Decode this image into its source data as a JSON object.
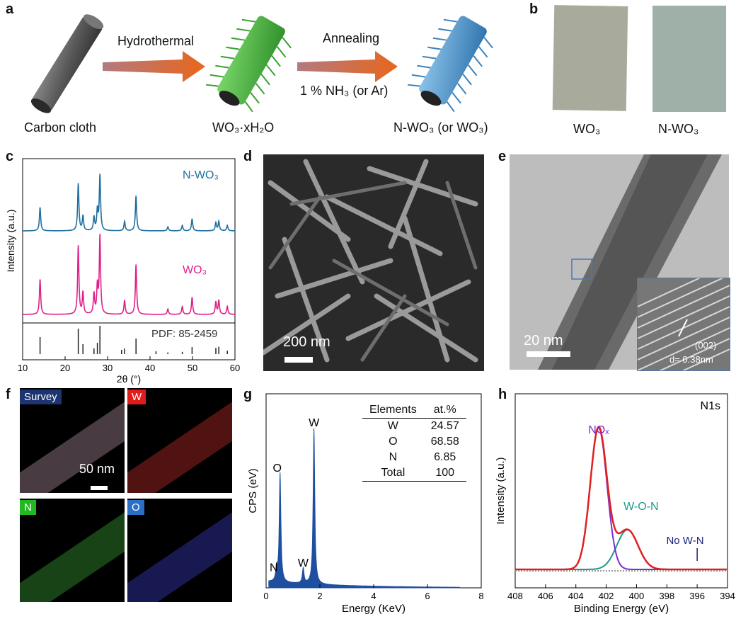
{
  "panels": {
    "a": "a",
    "b": "b",
    "c": "c",
    "d": "d",
    "e": "e",
    "f": "f",
    "g": "g",
    "h": "h"
  },
  "panel_a": {
    "step1_label": "Carbon cloth",
    "arrow1_label": "Hydrothermal",
    "step2_label": "WO₃·xH₂O",
    "arrow2_label": "Annealing",
    "arrow2_sub": "1 % NH₃ (or Ar)",
    "step3_label": "N-WO₃ (or WO₃)"
  },
  "panel_b": {
    "left_label": "WO₃",
    "right_label": "N-WO₃"
  },
  "panel_d": {
    "scale_bar": "200 nm"
  },
  "panel_e": {
    "scale_bar": "20 nm",
    "inset_plane": "(002)",
    "inset_d": "d= 0.38nm"
  },
  "panel_f": {
    "maps": [
      "Survey",
      "W",
      "N",
      "O"
    ],
    "scale_bar": "50 nm"
  },
  "chart_data": [
    {
      "panel": "c",
      "type": "line",
      "xlabel": "2θ (°)",
      "ylabel": "Intensity (a.u.)",
      "xlim": [
        10,
        60
      ],
      "xticks": [
        10,
        20,
        30,
        40,
        50,
        60
      ],
      "series": [
        {
          "name": "N-WO₃",
          "color": "#1f6f9f",
          "peaks": [
            [
              14.1,
              35
            ],
            [
              23.1,
              70
            ],
            [
              24.2,
              22
            ],
            [
              26.8,
              20
            ],
            [
              27.6,
              30
            ],
            [
              28.2,
              82
            ],
            [
              34.0,
              14
            ],
            [
              36.7,
              52
            ],
            [
              44.2,
              6
            ],
            [
              47.6,
              8
            ],
            [
              49.9,
              18
            ],
            [
              55.5,
              12
            ],
            [
              56.2,
              14
            ],
            [
              58.2,
              8
            ]
          ]
        },
        {
          "name": "WO₃",
          "color": "#e0218a",
          "peaks": [
            [
              14.1,
              45
            ],
            [
              23.1,
              88
            ],
            [
              24.2,
              28
            ],
            [
              26.8,
              26
            ],
            [
              27.6,
              35
            ],
            [
              28.2,
              100
            ],
            [
              34.0,
              18
            ],
            [
              36.7,
              64
            ],
            [
              44.2,
              7
            ],
            [
              47.6,
              10
            ],
            [
              49.9,
              22
            ],
            [
              55.5,
              16
            ],
            [
              56.2,
              18
            ],
            [
              58.2,
              10
            ]
          ]
        }
      ],
      "reference": {
        "name": "PDF: 85-2459",
        "lines": [
          [
            14.1,
            60
          ],
          [
            23.1,
            90
          ],
          [
            24.2,
            35
          ],
          [
            26.8,
            20
          ],
          [
            27.6,
            40
          ],
          [
            28.2,
            100
          ],
          [
            33.3,
            15
          ],
          [
            34.0,
            20
          ],
          [
            36.7,
            55
          ],
          [
            41.4,
            10
          ],
          [
            44.2,
            6
          ],
          [
            47.6,
            8
          ],
          [
            49.9,
            25
          ],
          [
            55.5,
            22
          ],
          [
            56.2,
            26
          ],
          [
            58.2,
            12
          ]
        ]
      }
    },
    {
      "panel": "g",
      "type": "area",
      "xlabel": "Energy (KeV)",
      "ylabel": "CPS (eV)",
      "xlim": [
        0,
        8
      ],
      "xticks": [
        0,
        2,
        4,
        6,
        8
      ],
      "color": "#1f4f9f",
      "peaks": [
        [
          0.39,
          8,
          "N"
        ],
        [
          0.52,
          70,
          "O"
        ],
        [
          1.38,
          10,
          "W"
        ],
        [
          1.78,
          100,
          "W"
        ]
      ],
      "table": {
        "headers": [
          "Elements",
          "at.%"
        ],
        "rows": [
          [
            "W",
            "24.57"
          ],
          [
            "O",
            "68.58"
          ],
          [
            "N",
            "6.85"
          ],
          [
            "Total",
            "100"
          ]
        ]
      }
    },
    {
      "panel": "h",
      "type": "line",
      "title": "N1s",
      "xlabel": "Binding Energy (eV)",
      "ylabel": "Intensity (a.u.)",
      "xlim": [
        408,
        394
      ],
      "xticks": [
        408,
        406,
        404,
        402,
        400,
        398,
        396,
        394
      ],
      "series": [
        {
          "name": "NOₓ",
          "color": "#7e2ccc",
          "center": 402.5,
          "height": 100
        },
        {
          "name": "W-O-N",
          "color": "#1b9a8a",
          "center": 400.6,
          "height": 28
        },
        {
          "name": "Fit",
          "color": "#e02020"
        }
      ],
      "annotation": "No W-N",
      "annotation_x": 396
    }
  ]
}
